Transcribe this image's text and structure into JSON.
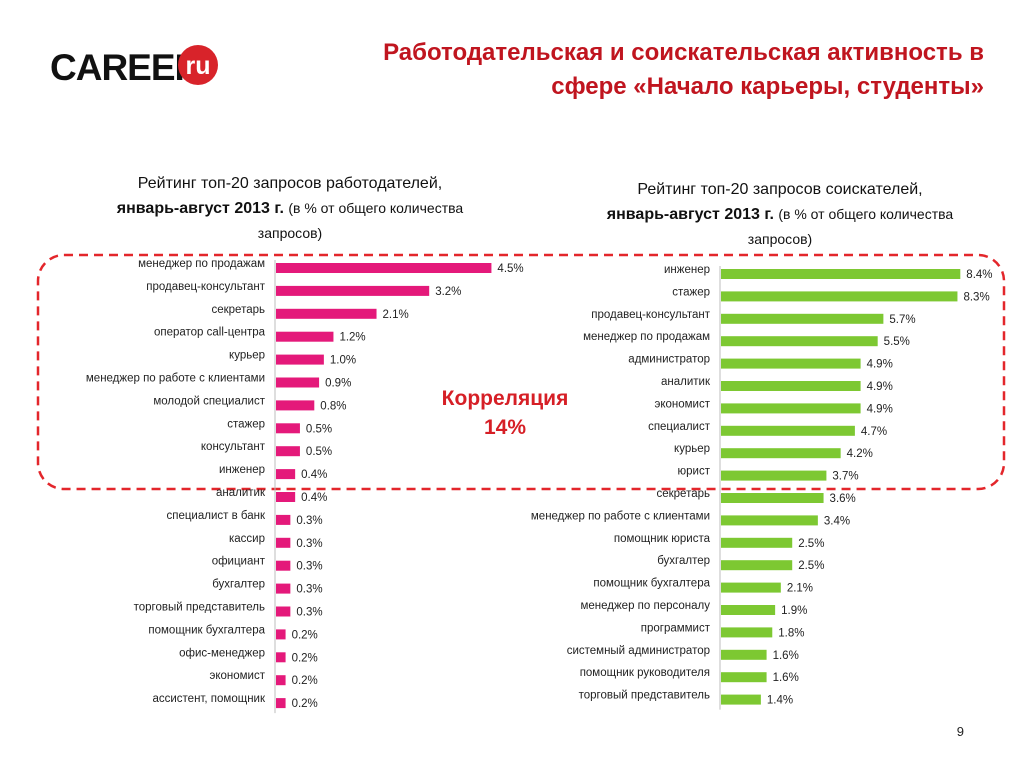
{
  "header": {
    "logo_text": "CAREER",
    "logo_badge": "ru",
    "title_line1": "Работодательская и соискательская активность в",
    "title_line2": "сфере «Начало карьеры, студенты»"
  },
  "left_chart": {
    "title_line1": "Рейтинг топ-20 запросов работодателей,",
    "title_line2_bold": "январь-август 2013 г.",
    "title_line2_note": "(в % от общего количества",
    "title_line3_note": "запросов)"
  },
  "right_chart": {
    "title_line1": "Рейтинг топ-20 запросов соискателей,",
    "title_line2_bold": "январь-август 2013 г.",
    "title_line2_note": "(в % от общего количества",
    "title_line3_note": "запросов)"
  },
  "correlation": {
    "label": "Корреляция",
    "value": "14%"
  },
  "page_number": "9",
  "colors": {
    "title": "#c0151f",
    "left_bars": "#e4197a",
    "right_bars": "#7dc832",
    "highlight_border": "#e3262b",
    "logo_badge": "#d8232a"
  },
  "chart_data": [
    {
      "type": "bar",
      "orientation": "horizontal",
      "title": "Рейтинг топ-20 запросов работодателей, январь-август 2013 г. (в % от общего количества запросов)",
      "categories": [
        "менеджер по продажам",
        "продавец-консультант",
        "секретарь",
        "оператор call-центра",
        "курьер",
        "менеджер по работе с клиентами",
        "молодой специалист",
        "стажер",
        "консультант",
        "инженер",
        "аналитик",
        "специалист в банк",
        "кассир",
        "официант",
        "бухгалтер",
        "торговый представитель",
        "помощник бухгалтера",
        "офис-менеджер",
        "экономист",
        "ассистент, помощник"
      ],
      "values": [
        4.5,
        3.2,
        2.1,
        1.2,
        1.0,
        0.9,
        0.8,
        0.5,
        0.5,
        0.4,
        0.4,
        0.3,
        0.3,
        0.3,
        0.3,
        0.3,
        0.2,
        0.2,
        0.2,
        0.2
      ],
      "value_labels": [
        "4.5%",
        "3.2%",
        "2.1%",
        "1.2%",
        "1.0%",
        "0.9%",
        "0.8%",
        "0.5%",
        "0.5%",
        "0.4%",
        "0.4%",
        "0.3%",
        "0.3%",
        "0.3%",
        "0.3%",
        "0.3%",
        "0.2%",
        "0.2%",
        "0.2%",
        "0.2%"
      ],
      "xlim": [
        0,
        4.7
      ],
      "highlight_top": 10,
      "grid": false,
      "legend": "none"
    },
    {
      "type": "bar",
      "orientation": "horizontal",
      "title": "Рейтинг топ-20 запросов соискателей, январь-август 2013 г. (в % от общего количества запросов)",
      "categories": [
        "инженер",
        "стажер",
        "продавец-консультант",
        "менеджер по продажам",
        "администратор",
        "аналитик",
        "экономист",
        "специалист",
        "курьер",
        "юрист",
        "секретарь",
        "менеджер по работе с клиентами",
        "помощник юриста",
        "бухгалтер",
        "помощник бухгалтера",
        "менеджер по персоналу",
        "программист",
        "системный администратор",
        "помощник руководителя",
        "торговый представитель"
      ],
      "values": [
        8.4,
        8.3,
        5.7,
        5.5,
        4.9,
        4.9,
        4.9,
        4.7,
        4.2,
        3.7,
        3.6,
        3.4,
        2.5,
        2.5,
        2.1,
        1.9,
        1.8,
        1.6,
        1.6,
        1.4
      ],
      "value_labels": [
        "8.4%",
        "8.3%",
        "5.7%",
        "5.5%",
        "4.9%",
        "4.9%",
        "4.9%",
        "4.7%",
        "4.2%",
        "3.7%",
        "3.6%",
        "3.4%",
        "2.5%",
        "2.5%",
        "2.1%",
        "1.9%",
        "1.8%",
        "1.6%",
        "1.6%",
        "1.4%"
      ],
      "xlim": [
        0,
        8.6
      ],
      "highlight_top": 10,
      "grid": false,
      "legend": "none"
    }
  ]
}
